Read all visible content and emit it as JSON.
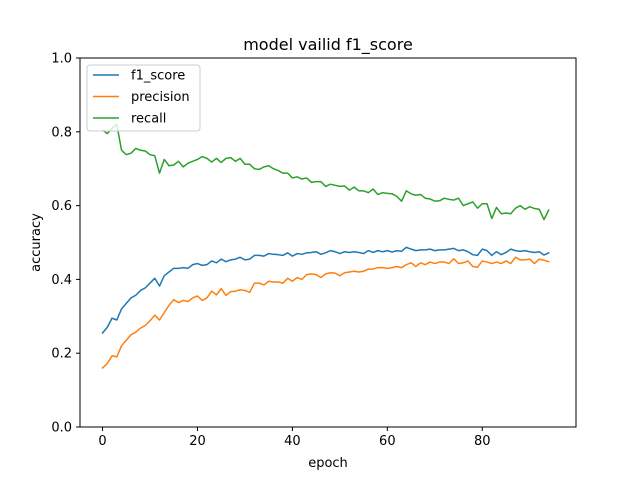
{
  "chart_data": {
    "type": "line",
    "title": "model vailid f1_score",
    "xlabel": "epoch",
    "ylabel": "accuracy",
    "xlim": [
      -4.75,
      99.75
    ],
    "ylim": [
      0.0,
      1.0
    ],
    "xticks": [
      "0",
      "20",
      "40",
      "60",
      "80"
    ],
    "xtick_values": [
      0,
      20,
      40,
      60,
      80
    ],
    "yticks": [
      "0.0",
      "0.2",
      "0.4",
      "0.6",
      "0.8",
      "1.0"
    ],
    "ytick_values": [
      0.0,
      0.2,
      0.4,
      0.6,
      0.8,
      1.0
    ],
    "grid": false,
    "legend_position": "top-left",
    "x_start": 0,
    "series": [
      {
        "name": "f1_score",
        "color": "#1f77b4",
        "values": [
          0.255,
          0.27,
          0.295,
          0.29,
          0.32,
          0.335,
          0.35,
          0.357,
          0.37,
          0.377,
          0.39,
          0.403,
          0.382,
          0.41,
          0.42,
          0.43,
          0.43,
          0.432,
          0.43,
          0.44,
          0.443,
          0.438,
          0.44,
          0.45,
          0.445,
          0.455,
          0.448,
          0.453,
          0.455,
          0.46,
          0.453,
          0.455,
          0.465,
          0.465,
          0.463,
          0.47,
          0.468,
          0.467,
          0.465,
          0.472,
          0.463,
          0.47,
          0.468,
          0.472,
          0.473,
          0.475,
          0.468,
          0.472,
          0.478,
          0.475,
          0.47,
          0.475,
          0.473,
          0.475,
          0.473,
          0.47,
          0.478,
          0.473,
          0.478,
          0.475,
          0.478,
          0.474,
          0.478,
          0.476,
          0.487,
          0.482,
          0.478,
          0.48,
          0.48,
          0.482,
          0.478,
          0.48,
          0.48,
          0.482,
          0.484,
          0.478,
          0.48,
          0.475,
          0.467,
          0.465,
          0.482,
          0.478,
          0.465,
          0.475,
          0.467,
          0.473,
          0.482,
          0.478,
          0.476,
          0.478,
          0.475,
          0.473,
          0.475,
          0.466,
          0.472
        ]
      },
      {
        "name": "precision",
        "color": "#ff7f0e",
        "values": [
          0.16,
          0.172,
          0.193,
          0.19,
          0.22,
          0.235,
          0.25,
          0.257,
          0.268,
          0.275,
          0.288,
          0.303,
          0.29,
          0.31,
          0.33,
          0.345,
          0.337,
          0.343,
          0.34,
          0.35,
          0.355,
          0.343,
          0.35,
          0.368,
          0.358,
          0.375,
          0.357,
          0.367,
          0.368,
          0.372,
          0.37,
          0.365,
          0.39,
          0.39,
          0.385,
          0.395,
          0.393,
          0.393,
          0.39,
          0.403,
          0.395,
          0.405,
          0.4,
          0.413,
          0.415,
          0.413,
          0.405,
          0.415,
          0.418,
          0.417,
          0.41,
          0.418,
          0.42,
          0.422,
          0.42,
          0.422,
          0.428,
          0.428,
          0.432,
          0.432,
          0.43,
          0.432,
          0.435,
          0.432,
          0.44,
          0.445,
          0.435,
          0.445,
          0.44,
          0.447,
          0.443,
          0.447,
          0.447,
          0.443,
          0.456,
          0.443,
          0.445,
          0.45,
          0.435,
          0.433,
          0.45,
          0.447,
          0.443,
          0.447,
          0.443,
          0.45,
          0.443,
          0.46,
          0.453,
          0.453,
          0.455,
          0.443,
          0.455,
          0.452,
          0.448
        ]
      },
      {
        "name": "recall",
        "color": "#2ca02c",
        "values": [
          0.805,
          0.795,
          0.81,
          0.82,
          0.75,
          0.738,
          0.742,
          0.755,
          0.75,
          0.748,
          0.738,
          0.735,
          0.688,
          0.725,
          0.708,
          0.71,
          0.72,
          0.705,
          0.715,
          0.72,
          0.725,
          0.733,
          0.728,
          0.718,
          0.728,
          0.717,
          0.728,
          0.73,
          0.72,
          0.728,
          0.712,
          0.712,
          0.7,
          0.698,
          0.705,
          0.708,
          0.7,
          0.695,
          0.688,
          0.688,
          0.675,
          0.678,
          0.672,
          0.675,
          0.663,
          0.665,
          0.665,
          0.652,
          0.658,
          0.655,
          0.652,
          0.653,
          0.642,
          0.65,
          0.64,
          0.64,
          0.635,
          0.645,
          0.63,
          0.635,
          0.633,
          0.632,
          0.625,
          0.612,
          0.64,
          0.632,
          0.628,
          0.63,
          0.62,
          0.618,
          0.612,
          0.613,
          0.62,
          0.617,
          0.615,
          0.62,
          0.6,
          0.605,
          0.61,
          0.593,
          0.605,
          0.605,
          0.565,
          0.595,
          0.578,
          0.58,
          0.578,
          0.593,
          0.6,
          0.59,
          0.597,
          0.592,
          0.59,
          0.562,
          0.588
        ]
      }
    ]
  }
}
